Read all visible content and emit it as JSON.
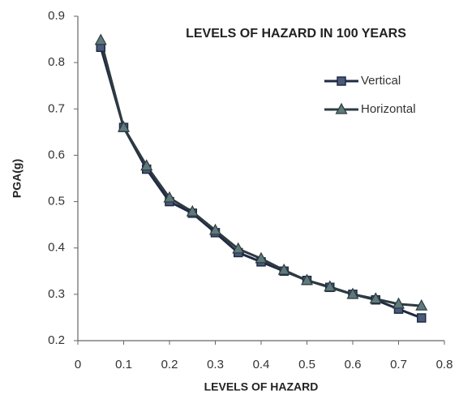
{
  "chart_data": {
    "type": "line",
    "title": "LEVELS OF HAZARD IN 100 YEARS",
    "x_label": "LEVELS OF HAZARD",
    "y_label": "PGA(g)",
    "x": [
      0.05,
      0.1,
      0.15,
      0.2,
      0.25,
      0.3,
      0.35,
      0.4,
      0.45,
      0.5,
      0.55,
      0.6,
      0.65,
      0.7,
      0.75
    ],
    "series": [
      {
        "name": "Vertical",
        "color": "#1f2a44",
        "marker": "square",
        "values": [
          0.833,
          0.66,
          0.57,
          0.5,
          0.475,
          0.433,
          0.39,
          0.37,
          0.35,
          0.33,
          0.315,
          0.3,
          0.288,
          0.268,
          0.249
        ]
      },
      {
        "name": "Horizontal",
        "color": "#2e3b40",
        "marker": "triangle",
        "values": [
          0.848,
          0.66,
          0.577,
          0.508,
          0.478,
          0.438,
          0.398,
          0.377,
          0.352,
          0.33,
          0.316,
          0.3,
          0.29,
          0.279,
          0.275
        ]
      }
    ],
    "xlim": [
      0,
      0.8
    ],
    "xticks": [
      0,
      0.1,
      0.2,
      0.3,
      0.4,
      0.5,
      0.6,
      0.7,
      0.8
    ],
    "ylim": [
      0.2,
      0.9
    ],
    "yticks": [
      0.2,
      0.3,
      0.4,
      0.5,
      0.6,
      0.7,
      0.8,
      0.9
    ],
    "grid": false,
    "legend": "upper right"
  }
}
